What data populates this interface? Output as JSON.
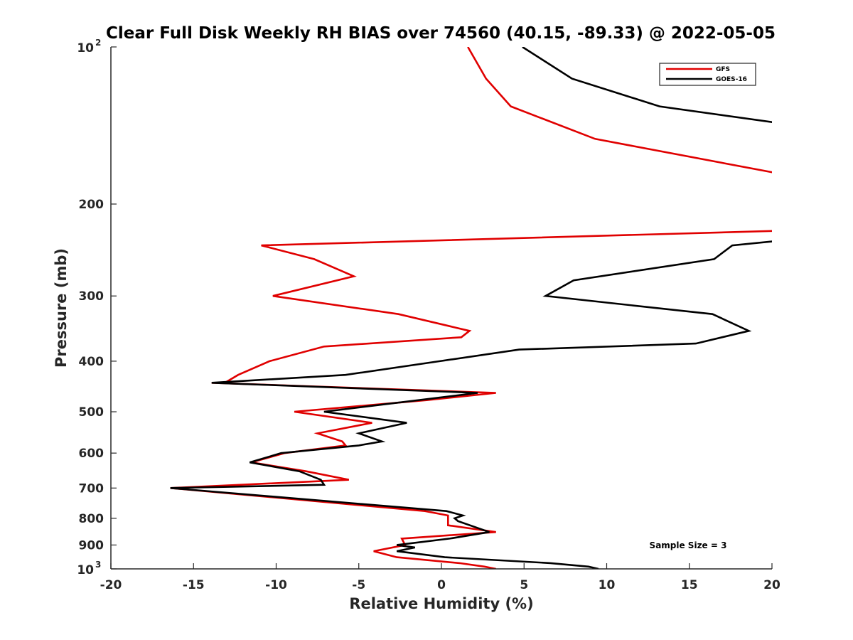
{
  "chart_data": {
    "type": "line",
    "title": "Clear Full Disk Weekly RH BIAS over 74560 (40.15, -89.33) @ 2022-05-05",
    "xlabel": "Relative Humidity (%)",
    "ylabel": "Pressure (mb)",
    "xlim": [
      -20,
      20
    ],
    "ylim": [
      100,
      1000
    ],
    "y_scale": "log",
    "y_reversed": true,
    "grid": false,
    "legend_position": "top-right",
    "annotation": "Sample Size = 3",
    "x_ticks": [
      {
        "value": -20,
        "label": "-20"
      },
      {
        "value": -15,
        "label": "-15"
      },
      {
        "value": -10,
        "label": "-10"
      },
      {
        "value": -5,
        "label": "-5"
      },
      {
        "value": 0,
        "label": "0"
      },
      {
        "value": 5,
        "label": "5"
      },
      {
        "value": 10,
        "label": "10"
      },
      {
        "value": 15,
        "label": "15"
      },
      {
        "value": 20,
        "label": "20"
      }
    ],
    "y_ticks": [
      {
        "value": 100,
        "label": "10",
        "exponent": "2"
      },
      {
        "value": 200,
        "label": "200"
      },
      {
        "value": 300,
        "label": "300"
      },
      {
        "value": 400,
        "label": "400"
      },
      {
        "value": 500,
        "label": "500"
      },
      {
        "value": 600,
        "label": "600"
      },
      {
        "value": 700,
        "label": "700"
      },
      {
        "value": 800,
        "label": "800"
      },
      {
        "value": 900,
        "label": "900"
      },
      {
        "value": 1000,
        "label": "10",
        "exponent": "3"
      }
    ],
    "series": [
      {
        "name": "GFS",
        "color": "#e00000",
        "points": [
          {
            "x": 1.6,
            "y": 100
          },
          {
            "x": 2.7,
            "y": 115
          },
          {
            "x": 4.2,
            "y": 130
          },
          {
            "x": 9.3,
            "y": 150
          },
          {
            "x": 20.5,
            "y": 175
          },
          {
            "x": 20.5,
            "y": 225
          },
          {
            "x": -10.9,
            "y": 240
          },
          {
            "x": -7.7,
            "y": 255
          },
          {
            "x": -5.3,
            "y": 275
          },
          {
            "x": -10.2,
            "y": 300
          },
          {
            "x": -2.6,
            "y": 325
          },
          {
            "x": 1.7,
            "y": 350
          },
          {
            "x": 1.2,
            "y": 360
          },
          {
            "x": -7.1,
            "y": 375
          },
          {
            "x": -10.4,
            "y": 400
          },
          {
            "x": -12.3,
            "y": 425
          },
          {
            "x": -13.1,
            "y": 440
          },
          {
            "x": -13.9,
            "y": 440
          },
          {
            "x": 3.3,
            "y": 460
          },
          {
            "x": -0.9,
            "y": 475
          },
          {
            "x": -8.9,
            "y": 500
          },
          {
            "x": -4.2,
            "y": 525
          },
          {
            "x": -7.5,
            "y": 550
          },
          {
            "x": -6.0,
            "y": 570
          },
          {
            "x": -5.8,
            "y": 580
          },
          {
            "x": -9.5,
            "y": 600
          },
          {
            "x": -11.5,
            "y": 625
          },
          {
            "x": -8.2,
            "y": 650
          },
          {
            "x": -5.6,
            "y": 675
          },
          {
            "x": -16.4,
            "y": 700
          },
          {
            "x": -1.0,
            "y": 775
          },
          {
            "x": 0.4,
            "y": 790
          },
          {
            "x": 0.4,
            "y": 825
          },
          {
            "x": 3.3,
            "y": 850
          },
          {
            "x": -2.4,
            "y": 875
          },
          {
            "x": -2.2,
            "y": 900
          },
          {
            "x": -4.1,
            "y": 925
          },
          {
            "x": -2.7,
            "y": 950
          },
          {
            "x": 1.1,
            "y": 975
          },
          {
            "x": 2.6,
            "y": 990
          },
          {
            "x": 3.3,
            "y": 1000
          }
        ]
      },
      {
        "name": "GOES-16",
        "color": "#000000",
        "points": [
          {
            "x": 4.9,
            "y": 100
          },
          {
            "x": 7.9,
            "y": 115
          },
          {
            "x": 13.2,
            "y": 130
          },
          {
            "x": 20.5,
            "y": 140
          },
          {
            "x": 20.5,
            "y": 235
          },
          {
            "x": 17.6,
            "y": 240
          },
          {
            "x": 16.5,
            "y": 255
          },
          {
            "x": 8.0,
            "y": 280
          },
          {
            "x": 6.3,
            "y": 300
          },
          {
            "x": 16.4,
            "y": 325
          },
          {
            "x": 18.6,
            "y": 350
          },
          {
            "x": 15.4,
            "y": 370
          },
          {
            "x": 4.7,
            "y": 380
          },
          {
            "x": -0.1,
            "y": 400
          },
          {
            "x": -5.8,
            "y": 425
          },
          {
            "x": -13.9,
            "y": 440
          },
          {
            "x": 2.2,
            "y": 460
          },
          {
            "x": -7.1,
            "y": 500
          },
          {
            "x": -2.1,
            "y": 525
          },
          {
            "x": -5.0,
            "y": 550
          },
          {
            "x": -3.6,
            "y": 570
          },
          {
            "x": -5.0,
            "y": 580
          },
          {
            "x": -9.7,
            "y": 600
          },
          {
            "x": -11.6,
            "y": 625
          },
          {
            "x": -8.6,
            "y": 650
          },
          {
            "x": -7.3,
            "y": 675
          },
          {
            "x": -7.1,
            "y": 690
          },
          {
            "x": -16.4,
            "y": 700
          },
          {
            "x": 0.3,
            "y": 775
          },
          {
            "x": 1.3,
            "y": 790
          },
          {
            "x": 0.8,
            "y": 800
          },
          {
            "x": 1.0,
            "y": 810
          },
          {
            "x": 2.9,
            "y": 850
          },
          {
            "x": 0.5,
            "y": 875
          },
          {
            "x": -2.7,
            "y": 900
          },
          {
            "x": -1.6,
            "y": 910
          },
          {
            "x": -2.7,
            "y": 925
          },
          {
            "x": 0.2,
            "y": 950
          },
          {
            "x": 6.6,
            "y": 975
          },
          {
            "x": 8.9,
            "y": 990
          },
          {
            "x": 9.5,
            "y": 1000
          }
        ]
      }
    ]
  }
}
